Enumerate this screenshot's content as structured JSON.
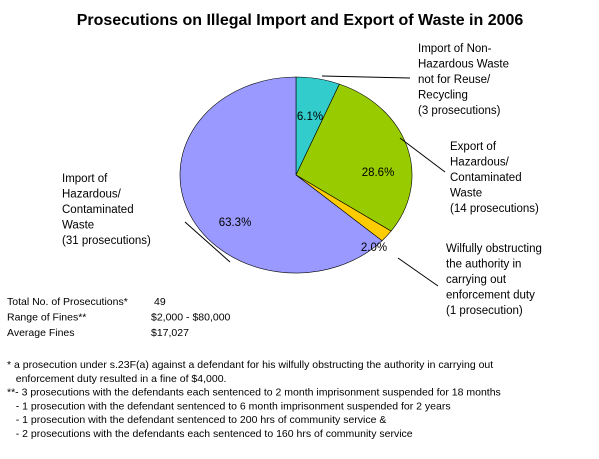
{
  "chart_data": {
    "type": "pie",
    "title": "Prosecutions on Illegal Import and Export of Waste in 2006",
    "slices": [
      {
        "name_lines": [
          "Import of Non-",
          "Hazardous Waste",
          "not for Reuse/",
          "Recycling",
          "(3 prosecutions)"
        ],
        "count": 3,
        "percent_label": "6.1%",
        "value": 6.1,
        "color": "#33CCCC"
      },
      {
        "name_lines": [
          "Export of",
          "Hazardous/",
          "Contaminated",
          "Waste",
          "(14 prosecutions)"
        ],
        "count": 14,
        "percent_label": "28.6%",
        "value": 28.6,
        "color": "#99CC00"
      },
      {
        "name_lines": [
          "Wilfully obstructing",
          "the authority in",
          "carrying out",
          "enforcement duty",
          "(1 prosecution)"
        ],
        "count": 1,
        "percent_label": "2.0%",
        "value": 2.0,
        "color": "#FFCC00"
      },
      {
        "name_lines": [
          "Import of",
          "Hazardous/",
          "Contaminated",
          "Waste",
          "(31 prosecutions)"
        ],
        "count": 31,
        "percent_label": "63.3%",
        "value": 63.3,
        "color": "#9999FF"
      }
    ]
  },
  "summary": {
    "rows": [
      {
        "label": "Total No. of Prosecutions*",
        "value": "49"
      },
      {
        "label": "Range of Fines**",
        "value": "$2,000 - $80,000"
      },
      {
        "label": "Average Fines",
        "value": "$17,027"
      }
    ]
  },
  "footnotes": [
    "* a prosecution under s.23F(a) against a defendant for his wilfully obstructing the authority in carrying out",
    "   enforcement duty resulted in a fine of $4,000.",
    "**- 3 prosecutions with the defendants each sentenced to 2 month imprisonment suspended for 18 months",
    "   - 1 prosecution with the defendant sentenced to 6 month imprisonment suspended for 2 years",
    "   - 1 prosecution with the defendant sentenced to 200 hrs of community service &",
    "   - 2 prosecutions with the defendants each sentenced to 160 hrs of community service"
  ]
}
